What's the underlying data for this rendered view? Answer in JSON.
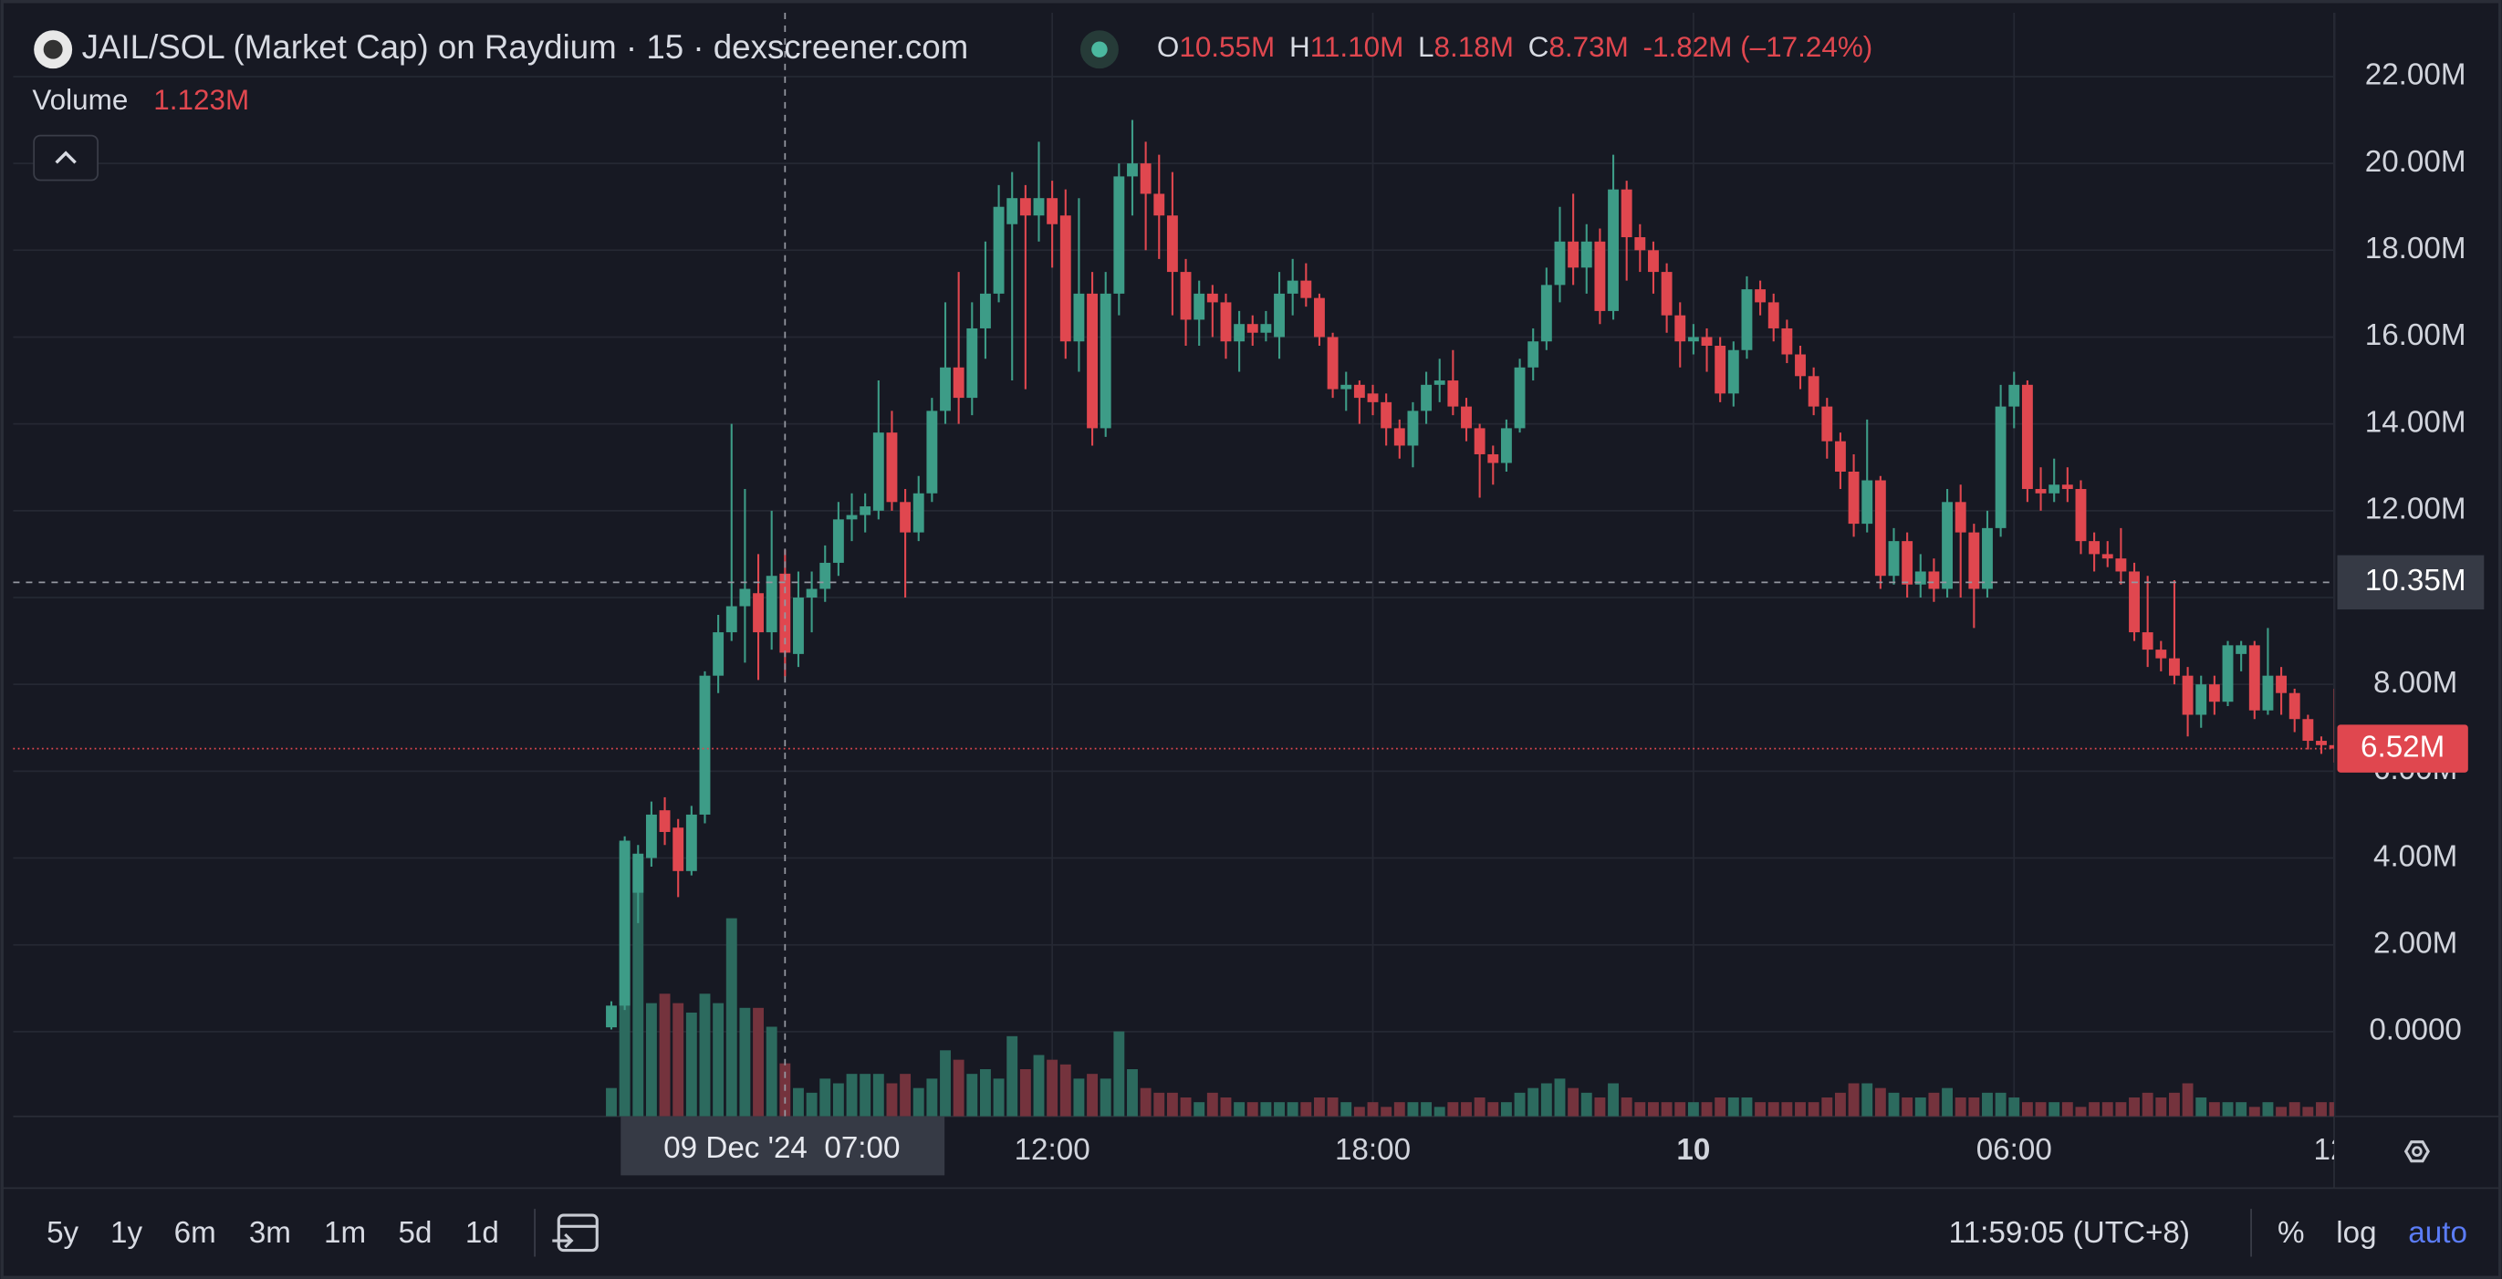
{
  "chart_data": {
    "type": "candlestick",
    "title": "JAIL/SOL (Market Cap) on Raydium · 15 · dexscreener.com",
    "legend": [
      {
        "label": "O",
        "value": "10.55M"
      },
      {
        "label": "H",
        "value": "11.10M"
      },
      {
        "label": "L",
        "value": "8.18M"
      },
      {
        "label": "C",
        "value": "8.73M"
      }
    ],
    "change": "-1.82M (–17.24%)",
    "volume_label": "Volume",
    "volume_value": "1.123M",
    "up_color": "#3d9c87",
    "down_color": "#e0474f",
    "volume_up_color": "#2c6a5e",
    "volume_down_color": "#74333d",
    "grid": true,
    "ylim": [
      -1.95,
      23.47
    ],
    "yticks": [
      {
        "value": 0,
        "label": "0.0000"
      },
      {
        "value": 2,
        "label": "2.00M"
      },
      {
        "value": 4,
        "label": "4.00M"
      },
      {
        "value": 6,
        "label": "6.00M"
      },
      {
        "value": 8,
        "label": "8.00M"
      },
      {
        "value": 10,
        "label": "10.00M"
      },
      {
        "value": 12,
        "label": "12.00M"
      },
      {
        "value": 14,
        "label": "14.00M"
      },
      {
        "value": 16,
        "label": "16.00M"
      },
      {
        "value": 18,
        "label": "18.00M"
      },
      {
        "value": 20,
        "label": "20.00M"
      },
      {
        "value": 22,
        "label": "22.00M"
      }
    ],
    "volume_ylim": [
      0,
      23.4
    ],
    "crosshair_x": 13,
    "crosshair_price": {
      "value": 10.35,
      "label": "10.35M"
    },
    "last_price": {
      "value": 6.52,
      "label": "6.52M"
    },
    "categories": [
      null,
      null,
      null,
      null,
      null,
      null,
      null,
      null,
      null,
      null,
      null,
      null,
      null,
      "09 Dec '24  07:00",
      null,
      null,
      null,
      null,
      null,
      null,
      null,
      null,
      null,
      null,
      null,
      null,
      null,
      null,
      null,
      null,
      null,
      null,
      null,
      "12:00",
      null,
      null,
      null,
      null,
      null,
      null,
      null,
      null,
      null,
      null,
      null,
      null,
      null,
      null,
      null,
      null,
      null,
      null,
      null,
      null,
      null,
      null,
      null,
      "18:00",
      null,
      null,
      null,
      null,
      null,
      null,
      null,
      null,
      null,
      null,
      null,
      null,
      null,
      null,
      null,
      null,
      null,
      null,
      null,
      null,
      null,
      null,
      null,
      "10",
      null,
      null,
      null,
      null,
      null,
      null,
      null,
      null,
      null,
      null,
      null,
      null,
      null,
      null,
      null,
      null,
      null,
      null,
      null,
      null,
      null,
      null,
      null,
      "06:00",
      null,
      null,
      null,
      null,
      null,
      null,
      null,
      null,
      null,
      null,
      null,
      null,
      null,
      null,
      null,
      null,
      null,
      null,
      null,
      null,
      null,
      null,
      null,
      "12:"
    ],
    "open": [
      0.1,
      0.6,
      3.2,
      4.0,
      5.1,
      4.7,
      3.7,
      5.0,
      8.2,
      9.2,
      9.8,
      10.1,
      9.2,
      10.55,
      8.7,
      10.0,
      10.2,
      10.8,
      11.8,
      11.9,
      12.0,
      13.8,
      12.2,
      11.5,
      12.4,
      14.3,
      15.3,
      14.6,
      16.2,
      17.0,
      18.6,
      19.2,
      18.8,
      19.2,
      18.8,
      15.9,
      17.0,
      13.9,
      17.0,
      19.7,
      20.0,
      19.3,
      18.8,
      17.5,
      16.4,
      17.0,
      16.8,
      15.9,
      16.3,
      16.1,
      16.0,
      17.0,
      17.3,
      16.9,
      16.0,
      14.8,
      14.9,
      14.7,
      14.5,
      13.9,
      13.5,
      14.3,
      14.9,
      15.0,
      14.4,
      13.9,
      13.3,
      13.1,
      13.9,
      15.3,
      15.9,
      17.2,
      18.2,
      17.6,
      18.2,
      16.6,
      19.4,
      18.3,
      18.0,
      17.5,
      16.5,
      15.9,
      16.0,
      15.8,
      14.7,
      15.7,
      17.1,
      16.8,
      16.2,
      15.6,
      15.1,
      14.4,
      13.6,
      12.9,
      11.7,
      12.7,
      10.5,
      11.3,
      10.3,
      10.6,
      10.2,
      12.2,
      11.5,
      10.2,
      11.6,
      14.4,
      14.9,
      12.5,
      12.4,
      12.6,
      12.5,
      11.3,
      11.0,
      10.9,
      10.6,
      9.2,
      8.8,
      8.6,
      8.2,
      7.3,
      8.0,
      7.6,
      8.7,
      8.9,
      7.4,
      8.2,
      7.8,
      7.2,
      6.7,
      6.6
    ],
    "high": [
      0.7,
      4.5,
      4.3,
      5.3,
      5.4,
      4.9,
      5.2,
      8.3,
      9.6,
      14.0,
      12.5,
      11.0,
      12.0,
      11.1,
      10.6,
      10.6,
      11.2,
      12.2,
      12.4,
      12.4,
      15.0,
      14.3,
      12.5,
      12.8,
      14.6,
      16.8,
      17.5,
      16.8,
      18.2,
      19.5,
      19.8,
      19.5,
      20.5,
      19.6,
      19.4,
      19.2,
      17.5,
      17.5,
      20.0,
      21.0,
      20.5,
      20.2,
      19.8,
      17.8,
      17.3,
      17.2,
      17.0,
      16.6,
      16.5,
      16.6,
      17.5,
      17.8,
      17.7,
      17.0,
      16.1,
      15.2,
      15.0,
      14.9,
      14.7,
      14.1,
      14.5,
      15.2,
      15.5,
      15.7,
      14.6,
      14.0,
      13.5,
      14.1,
      15.5,
      16.2,
      17.6,
      19.0,
      19.3,
      18.6,
      18.5,
      20.2,
      19.6,
      18.6,
      18.2,
      17.7,
      16.8,
      16.3,
      16.2,
      16.0,
      15.9,
      17.4,
      17.3,
      17.0,
      16.4,
      15.8,
      15.3,
      14.6,
      13.8,
      13.3,
      14.1,
      12.8,
      11.6,
      11.5,
      11.0,
      10.9,
      12.5,
      12.6,
      11.7,
      12.0,
      14.9,
      15.2,
      15.0,
      13.0,
      13.2,
      13.0,
      12.7,
      11.5,
      11.3,
      11.6,
      10.8,
      10.5,
      9.0,
      10.4,
      8.4,
      8.2,
      8.2,
      9.0,
      9.0,
      9.0,
      9.3,
      8.4,
      7.9,
      7.3,
      6.8,
      7.9
    ],
    "low": [
      0.05,
      0.5,
      2.5,
      3.8,
      4.3,
      3.1,
      3.6,
      4.8,
      7.8,
      9.0,
      8.5,
      8.1,
      8.8,
      8.18,
      8.4,
      9.2,
      9.9,
      10.5,
      11.3,
      11.5,
      11.8,
      12.0,
      10.0,
      11.3,
      12.2,
      14.0,
      14.0,
      14.2,
      15.5,
      16.8,
      15.0,
      14.8,
      18.2,
      17.6,
      15.5,
      15.2,
      13.5,
      13.7,
      16.5,
      18.8,
      18.0,
      17.8,
      16.5,
      15.8,
      15.8,
      16.0,
      15.5,
      15.2,
      15.8,
      15.9,
      15.5,
      16.5,
      16.7,
      15.8,
      14.6,
      14.3,
      14.0,
      14.2,
      13.5,
      13.2,
      13.0,
      14.0,
      14.5,
      14.2,
      13.6,
      12.3,
      12.6,
      12.9,
      13.8,
      15.0,
      15.7,
      16.8,
      17.2,
      17.0,
      16.3,
      16.4,
      17.3,
      17.5,
      17.0,
      16.1,
      15.3,
      15.6,
      15.2,
      14.5,
      14.4,
      15.5,
      16.5,
      15.9,
      15.4,
      14.8,
      14.2,
      13.2,
      12.5,
      11.4,
      11.5,
      10.2,
      10.3,
      10.0,
      10.0,
      9.9,
      10.0,
      10.0,
      9.3,
      10.0,
      11.4,
      13.9,
      12.2,
      12.0,
      12.2,
      12.2,
      11.0,
      10.6,
      10.7,
      10.3,
      9.0,
      8.4,
      8.3,
      8.0,
      6.8,
      7.0,
      7.3,
      7.5,
      8.3,
      7.2,
      7.3,
      7.3,
      6.9,
      6.5,
      6.4,
      6.2
    ],
    "close": [
      0.6,
      4.4,
      4.1,
      5.0,
      4.6,
      3.7,
      5.0,
      8.2,
      9.2,
      9.8,
      10.2,
      9.2,
      10.5,
      8.73,
      10.0,
      10.2,
      10.8,
      11.8,
      11.9,
      12.1,
      13.8,
      12.2,
      11.5,
      12.4,
      14.3,
      15.3,
      14.6,
      16.2,
      17.0,
      19.0,
      19.2,
      18.8,
      19.2,
      18.6,
      15.9,
      17.0,
      13.9,
      17.0,
      19.7,
      20.0,
      19.3,
      18.8,
      17.5,
      16.4,
      17.0,
      16.8,
      15.9,
      16.3,
      16.1,
      16.3,
      17.0,
      17.3,
      16.9,
      16.0,
      14.8,
      14.9,
      14.6,
      14.5,
      13.9,
      13.5,
      14.3,
      14.9,
      15.0,
      14.4,
      13.9,
      13.3,
      13.1,
      13.9,
      15.3,
      15.9,
      17.2,
      18.2,
      17.6,
      18.2,
      16.6,
      19.4,
      18.3,
      18.0,
      17.5,
      16.5,
      15.9,
      16.0,
      15.8,
      14.7,
      15.7,
      17.1,
      16.8,
      16.2,
      15.6,
      15.1,
      14.4,
      13.6,
      12.9,
      11.7,
      12.7,
      10.5,
      11.3,
      10.3,
      10.6,
      10.2,
      12.2,
      11.5,
      10.2,
      11.6,
      14.4,
      14.9,
      12.5,
      12.4,
      12.6,
      12.5,
      11.3,
      11.0,
      10.9,
      10.6,
      9.2,
      8.8,
      8.6,
      8.2,
      7.3,
      8.0,
      7.6,
      8.9,
      8.9,
      7.4,
      8.2,
      7.8,
      7.2,
      6.7,
      6.6,
      6.52
    ],
    "volume": [
      0.6,
      5.8,
      5.5,
      2.4,
      2.6,
      2.4,
      2.2,
      2.6,
      2.4,
      4.2,
      2.3,
      2.3,
      1.9,
      1.123,
      0.6,
      0.5,
      0.8,
      0.7,
      0.9,
      0.9,
      0.9,
      0.7,
      0.9,
      0.6,
      0.8,
      1.4,
      1.2,
      0.9,
      1.0,
      0.8,
      1.7,
      1.0,
      1.3,
      1.2,
      1.1,
      0.8,
      0.9,
      0.8,
      1.8,
      1.0,
      0.6,
      0.5,
      0.5,
      0.4,
      0.3,
      0.5,
      0.4,
      0.3,
      0.3,
      0.3,
      0.3,
      0.3,
      0.3,
      0.4,
      0.4,
      0.3,
      0.2,
      0.3,
      0.2,
      0.3,
      0.3,
      0.3,
      0.2,
      0.3,
      0.3,
      0.4,
      0.3,
      0.3,
      0.5,
      0.6,
      0.7,
      0.8,
      0.6,
      0.5,
      0.4,
      0.7,
      0.4,
      0.3,
      0.3,
      0.3,
      0.3,
      0.3,
      0.3,
      0.4,
      0.4,
      0.4,
      0.3,
      0.3,
      0.3,
      0.3,
      0.3,
      0.4,
      0.5,
      0.7,
      0.7,
      0.6,
      0.5,
      0.4,
      0.4,
      0.5,
      0.6,
      0.4,
      0.4,
      0.5,
      0.5,
      0.4,
      0.3,
      0.3,
      0.3,
      0.3,
      0.2,
      0.3,
      0.3,
      0.3,
      0.4,
      0.5,
      0.4,
      0.5,
      0.7,
      0.4,
      0.3,
      0.3,
      0.3,
      0.2,
      0.3,
      0.2,
      0.3,
      0.2,
      0.3,
      0.3
    ]
  },
  "toolbar": {
    "ranges": [
      "5y",
      "1y",
      "6m",
      "3m",
      "1m",
      "5d",
      "1d"
    ],
    "time": "11:59:05 (UTC+8)",
    "options": [
      "%",
      "log",
      "auto"
    ]
  }
}
